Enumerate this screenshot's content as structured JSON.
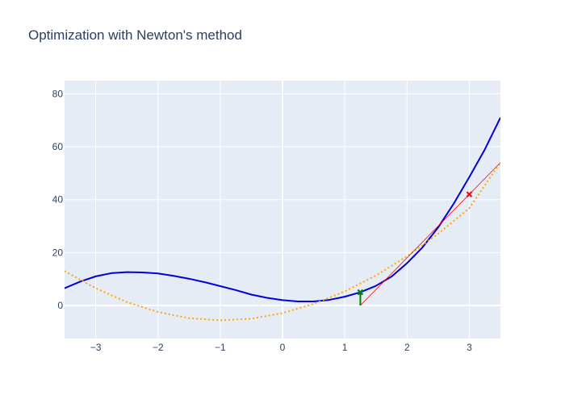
{
  "chart_data": {
    "type": "line",
    "title": "Optimization with Newton's method",
    "xlabel": "",
    "ylabel": "",
    "xlim": [
      -3.5,
      3.5
    ],
    "ylim": [
      -12.5,
      85
    ],
    "grid": true,
    "x_ticks": [
      -3,
      -2,
      -1,
      0,
      1,
      2,
      3
    ],
    "x_tick_labels": [
      "−3",
      "−2",
      "−1",
      "0",
      "1",
      "2",
      "3"
    ],
    "y_ticks": [
      0,
      20,
      40,
      60,
      80
    ],
    "y_tick_labels": [
      "0",
      "20",
      "40",
      "60",
      "80"
    ],
    "colors": {
      "function": "#0000dd",
      "quadratic": "#ffa500",
      "tangent": "#ff0000",
      "current_point": "#ff0000",
      "next_point": "#008000",
      "background": "#e5ecf6",
      "grid": "#ffffff"
    },
    "series": [
      {
        "role": "function",
        "style": "solid",
        "x": [
          -3.5,
          -3.25,
          -3.0,
          -2.75,
          -2.5,
          -2.25,
          -2.0,
          -1.75,
          -1.5,
          -1.25,
          -1.0,
          -0.75,
          -0.5,
          -0.25,
          0.0,
          0.25,
          0.5,
          0.75,
          1.0,
          1.25,
          1.5,
          1.75,
          2.0,
          2.25,
          2.5,
          2.75,
          3.0,
          3.25,
          3.5
        ],
        "y": [
          6.5,
          9.0,
          11.0,
          12.2,
          12.6,
          12.5,
          12.1,
          11.2,
          10.1,
          8.8,
          7.3,
          5.8,
          4.1,
          2.9,
          2.0,
          1.5,
          1.5,
          2.1,
          3.3,
          5.0,
          7.4,
          10.9,
          16.0,
          22.0,
          29.5,
          38.5,
          48.5,
          59.0,
          71.0
        ]
      },
      {
        "role": "quadratic",
        "style": "dotted",
        "x": [
          -3.5,
          -3.0,
          -2.5,
          -2.0,
          -1.5,
          -1.0,
          -0.5,
          0.0,
          0.5,
          1.0,
          1.5,
          2.0,
          2.5,
          3.0,
          3.5
        ],
        "y": [
          13.0,
          6.5,
          1.3,
          -2.5,
          -4.8,
          -5.6,
          -5.0,
          -2.9,
          0.6,
          5.3,
          11.3,
          18.6,
          27.1,
          36.8,
          54.0
        ]
      },
      {
        "role": "tangent",
        "style": "thin",
        "x": [
          1.25,
          3.5
        ],
        "y": [
          0.0,
          54.0
        ]
      },
      {
        "role": "step",
        "style": "thick",
        "x": [
          1.25,
          1.25
        ],
        "y": [
          0.0,
          5.0
        ]
      }
    ],
    "points": [
      {
        "role": "current_point",
        "x": 3.0,
        "y": 42.0,
        "symbol": "x"
      },
      {
        "role": "next_point",
        "x": 1.25,
        "y": 5.0,
        "symbol": "x"
      }
    ]
  }
}
